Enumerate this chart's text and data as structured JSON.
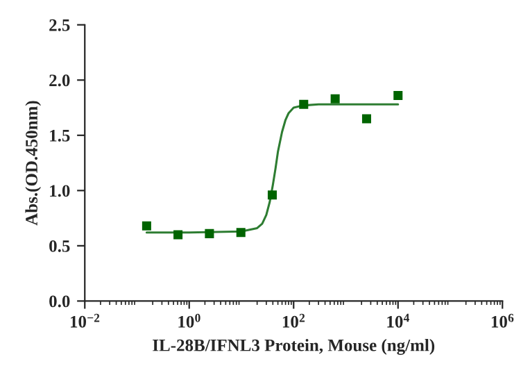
{
  "chart_data": {
    "type": "scatter",
    "xlabel": "IL-28B/IFNL3 Protein, Mouse (ng/ml)",
    "ylabel": "Abs.(OD.450nm)",
    "log": "x",
    "marker": "square",
    "grid": false,
    "legend": false,
    "xlim": [
      0.01,
      1000000
    ],
    "xticks": [
      {
        "value": 0.01,
        "label": "10$^{−2}$"
      },
      {
        "value": 1,
        "label": "10$^{0}$"
      },
      {
        "value": 100,
        "label": "10$^{2}$"
      },
      {
        "value": 10000,
        "label": "10$^{4}$"
      },
      {
        "value": 1000000,
        "label": "10$^{6}$"
      }
    ],
    "ylim": [
      0,
      2.5
    ],
    "yticks": [
      {
        "value": 0,
        "label": "0.0"
      },
      {
        "value": 0.5,
        "label": "0.5"
      },
      {
        "value": 1,
        "label": "1.0"
      },
      {
        "value": 1.5,
        "label": "1.5"
      },
      {
        "value": 2,
        "label": "2.0"
      },
      {
        "value": 2.5,
        "label": "2.5"
      }
    ],
    "series": [
      {
        "color": "#006400",
        "x": [
          0.153,
          0.61,
          2.44,
          9.77,
          39,
          156,
          625,
          2500,
          10000
        ],
        "values": [
          0.68,
          0.6,
          0.61,
          0.62,
          0.96,
          1.78,
          1.83,
          1.65,
          1.86
        ]
      },
      {
        "type": "line",
        "color": "#2e7d32",
        "marker": "none",
        "x": [
          0.153,
          1,
          10,
          20,
          25,
          30,
          35,
          40,
          45,
          50,
          60,
          70,
          80,
          100,
          150,
          300,
          10000
        ],
        "values": [
          0.62,
          0.62,
          0.63,
          0.66,
          0.7,
          0.78,
          0.9,
          1.05,
          1.2,
          1.35,
          1.53,
          1.64,
          1.7,
          1.75,
          1.77,
          1.78,
          1.78
        ]
      }
    ]
  }
}
